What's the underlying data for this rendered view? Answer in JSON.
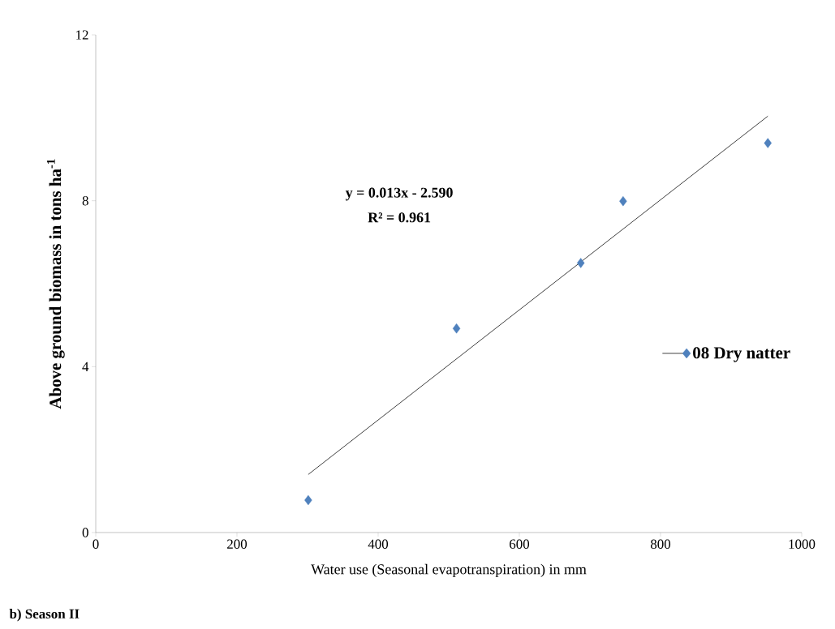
{
  "chart_data": {
    "type": "scatter",
    "xlabel": "Water use (Seasonal evapotranspiration) in mm",
    "ylabel": "Above ground biomass in tons ha$^{-1}$",
    "xlim": [
      0,
      1000
    ],
    "ylim": [
      0,
      12
    ],
    "xticks": [
      0,
      200,
      400,
      600,
      800,
      1000
    ],
    "yticks": [
      0,
      4,
      8,
      12
    ],
    "legend": "right",
    "series": [
      {
        "name": "08 Dry natter",
        "marker": "diamond",
        "color": "#4f81bd",
        "x": [
          301,
          511,
          687,
          747,
          952
        ],
        "values": [
          0.78,
          4.92,
          6.5,
          7.99,
          9.39
        ]
      },
      {
        "type": "line",
        "marker": "none",
        "color": "#404040",
        "line_style": "solid",
        "x": [
          301,
          952
        ],
        "values": [
          1.4,
          10.04
        ]
      }
    ],
    "annotations": [
      "y = 0.013x - 2.590",
      "R² = 0.961",
      "b) Season II"
    ]
  }
}
